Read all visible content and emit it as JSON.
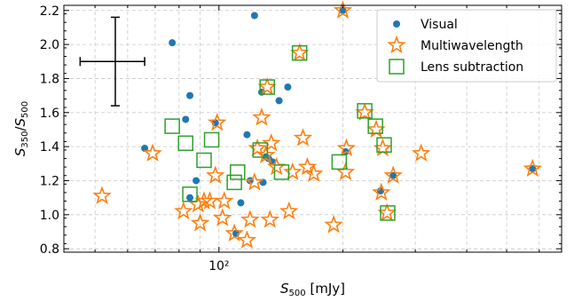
{
  "chart_data": {
    "type": "scatter",
    "title": "",
    "xlabel": "S_500 [mJy]",
    "ylabel": "S_350/S_500",
    "xscale": "log",
    "xlim": [
      42,
      680
    ],
    "ylim": [
      0.78,
      2.23
    ],
    "x_major_ticks": [
      100
    ],
    "x_major_tick_labels": [
      "10²"
    ],
    "x_minor_ticks": [
      50,
      60,
      70,
      80,
      90,
      200,
      300,
      400,
      500,
      600
    ],
    "y_ticks": [
      0.8,
      1.0,
      1.2,
      1.4,
      1.6,
      1.8,
      2.0,
      2.2
    ],
    "y_tick_labels": [
      "0.8",
      "1.0",
      "1.2",
      "1.4",
      "1.6",
      "1.8",
      "2.0",
      "2.2"
    ],
    "grid": true,
    "legend_position": "top-right",
    "representative_error_bar": {
      "x": 56,
      "y": 1.9,
      "y_err": 0.26,
      "x_low": 46,
      "x_high": 66
    },
    "series": [
      {
        "name": "Visual",
        "marker": "circle",
        "color": "#1f77b4",
        "points": [
          [
            66,
            1.39
          ],
          [
            77,
            2.01
          ],
          [
            83,
            1.56
          ],
          [
            85,
            1.7
          ],
          [
            85,
            1.1
          ],
          [
            88,
            1.2
          ],
          [
            98,
            1.54
          ],
          [
            110,
            0.89
          ],
          [
            113,
            1.07
          ],
          [
            117,
            1.47
          ],
          [
            119,
            1.2
          ],
          [
            122,
            2.17
          ],
          [
            127,
            1.72
          ],
          [
            128,
            1.19
          ],
          [
            130,
            1.34
          ],
          [
            132,
            1.33
          ],
          [
            135,
            1.31
          ],
          [
            140,
            1.67
          ],
          [
            147,
            1.75
          ],
          [
            200,
            2.2
          ],
          [
            203,
            1.37
          ],
          [
            247,
            1.14
          ],
          [
            265,
            1.23
          ],
          [
            578,
            1.27
          ]
        ]
      },
      {
        "name": "Multiwavelength",
        "marker": "star",
        "color": "#ff7f0e",
        "points": [
          [
            52,
            1.11
          ],
          [
            69,
            1.36
          ],
          [
            82,
            1.02
          ],
          [
            89,
            1.06
          ],
          [
            90,
            0.95
          ],
          [
            92,
            1.08
          ],
          [
            95,
            1.08
          ],
          [
            98,
            1.23
          ],
          [
            99,
            1.54
          ],
          [
            102,
            0.98
          ],
          [
            103,
            1.08
          ],
          [
            109,
            0.89
          ],
          [
            117,
            0.85
          ],
          [
            119,
            0.97
          ],
          [
            122,
            1.19
          ],
          [
            124,
            1.39
          ],
          [
            127,
            1.57
          ],
          [
            130,
            1.35
          ],
          [
            131,
            1.75
          ],
          [
            133,
            0.97
          ],
          [
            134,
            1.42
          ],
          [
            138,
            1.28
          ],
          [
            148,
            1.02
          ],
          [
            151,
            1.25
          ],
          [
            157,
            1.95
          ],
          [
            160,
            1.45
          ],
          [
            164,
            1.28
          ],
          [
            170,
            1.24
          ],
          [
            190,
            0.94
          ],
          [
            200,
            2.2
          ],
          [
            203,
            1.25
          ],
          [
            204,
            1.39
          ],
          [
            226,
            1.6
          ],
          [
            241,
            1.5
          ],
          [
            248,
            1.13
          ],
          [
            250,
            1.39
          ],
          [
            256,
            1.01
          ],
          [
            265,
            1.23
          ],
          [
            310,
            1.36
          ],
          [
            578,
            1.27
          ]
        ]
      },
      {
        "name": "Lens subtraction",
        "marker": "square",
        "color": "#2ca02c",
        "points": [
          [
            77,
            1.52
          ],
          [
            83,
            1.42
          ],
          [
            85,
            1.12
          ],
          [
            92,
            1.32
          ],
          [
            96,
            1.44
          ],
          [
            109,
            1.19
          ],
          [
            111,
            1.25
          ],
          [
            126,
            1.38
          ],
          [
            131,
            1.75
          ],
          [
            142,
            1.25
          ],
          [
            157,
            1.95
          ],
          [
            196,
            1.31
          ],
          [
            226,
            1.61
          ],
          [
            240,
            1.52
          ],
          [
            252,
            1.41
          ],
          [
            257,
            1.01
          ]
        ]
      }
    ]
  }
}
